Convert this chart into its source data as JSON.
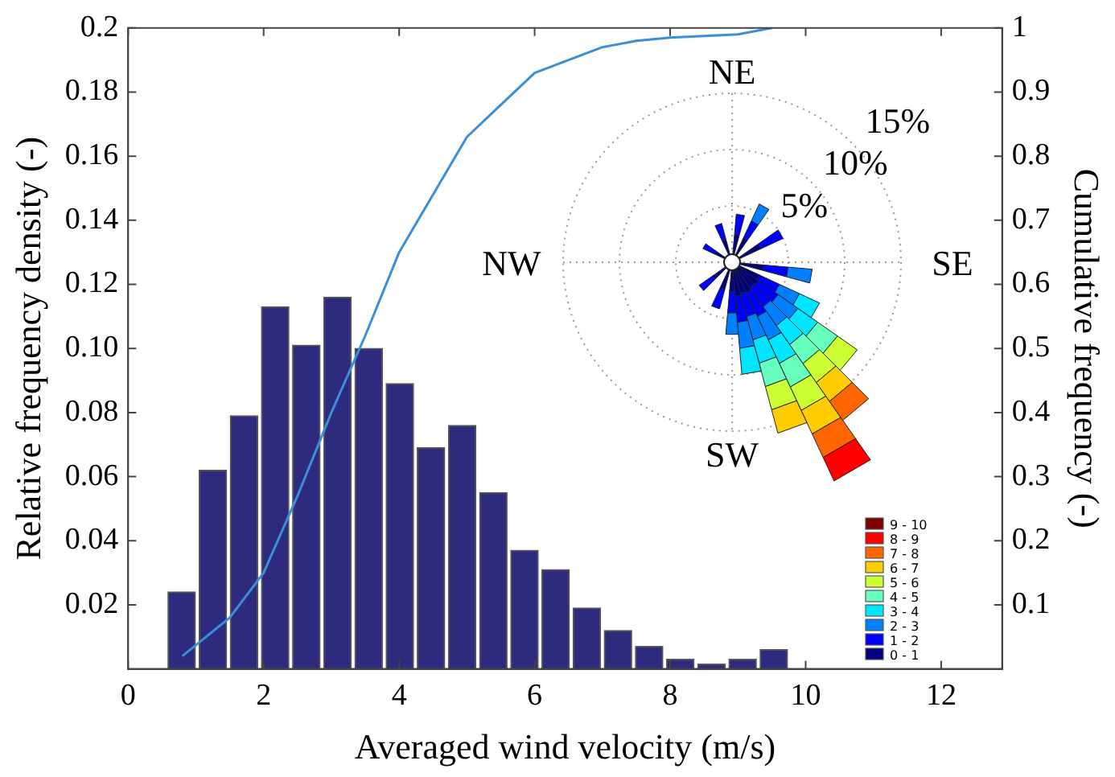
{
  "chart_data": [
    {
      "type": "histogram",
      "xlabel": "Averaged wind velocity (m/s)",
      "ylabel": "Relative frequency density (-)",
      "y2label": "Cumulative frequency (-)",
      "bins": [
        0.56,
        1.02,
        1.48,
        1.94,
        2.4,
        2.86,
        3.32,
        3.78,
        4.24,
        4.7,
        5.16,
        5.62,
        6.08,
        6.54,
        7.0,
        7.46,
        7.92,
        8.38,
        8.84,
        9.3,
        9.76
      ],
      "values": [
        0.024,
        0.062,
        0.079,
        0.113,
        0.101,
        0.116,
        0.1,
        0.089,
        0.069,
        0.076,
        0.055,
        0.037,
        0.031,
        0.019,
        0.012,
        0.007,
        0.003,
        0.0015,
        0.003,
        0.006
      ],
      "color": "#2e2a7e",
      "series": [
        {
          "type": "line",
          "axis": "y2",
          "color": "#3a8fd8",
          "x": [
            0.8,
            1.5,
            2,
            2.5,
            3,
            3.5,
            4,
            4.5,
            5,
            5.5,
            6,
            6.5,
            7,
            7.5,
            8,
            9,
            9.5
          ],
          "values": [
            0.02,
            0.08,
            0.15,
            0.27,
            0.4,
            0.52,
            0.65,
            0.74,
            0.83,
            0.88,
            0.93,
            0.95,
            0.97,
            0.98,
            0.985,
            0.99,
            1.0
          ]
        }
      ],
      "xlim": [
        0,
        12.9
      ],
      "xticks": [
        0,
        2,
        4,
        6,
        8,
        10,
        12
      ],
      "ylim": [
        0,
        0.2
      ],
      "yticks": [
        0.02,
        0.04,
        0.06,
        0.08,
        {
          "value": 0.1,
          "label": "0.10"
        },
        0.12,
        0.14,
        0.16,
        0.18,
        0.2
      ],
      "y2lim": [
        0,
        1
      ],
      "y2ticks": [
        0.1,
        0.2,
        0.3,
        0.4,
        0.5,
        0.6,
        0.7,
        0.8,
        0.9,
        1
      ],
      "grid": false,
      "legend": false
    },
    {
      "type": "other",
      "annotations": [
        "NE",
        "SE",
        "SW",
        "NW",
        "5%",
        "10%",
        "15%"
      ],
      "categories": [
        "9 - 10",
        "8 - 9",
        "7 - 8",
        "6 - 7",
        "5 - 6",
        "4 - 5",
        "3 - 4",
        "2 - 3",
        "1 - 2",
        "0 - 1"
      ],
      "colors": [
        "#800000",
        "#ff0000",
        "#ff6600",
        "#ffcc00",
        "#ccff33",
        "#66ffbb",
        "#00e5ff",
        "#0080ff",
        "#0000ff",
        "#000080"
      ]
    }
  ]
}
